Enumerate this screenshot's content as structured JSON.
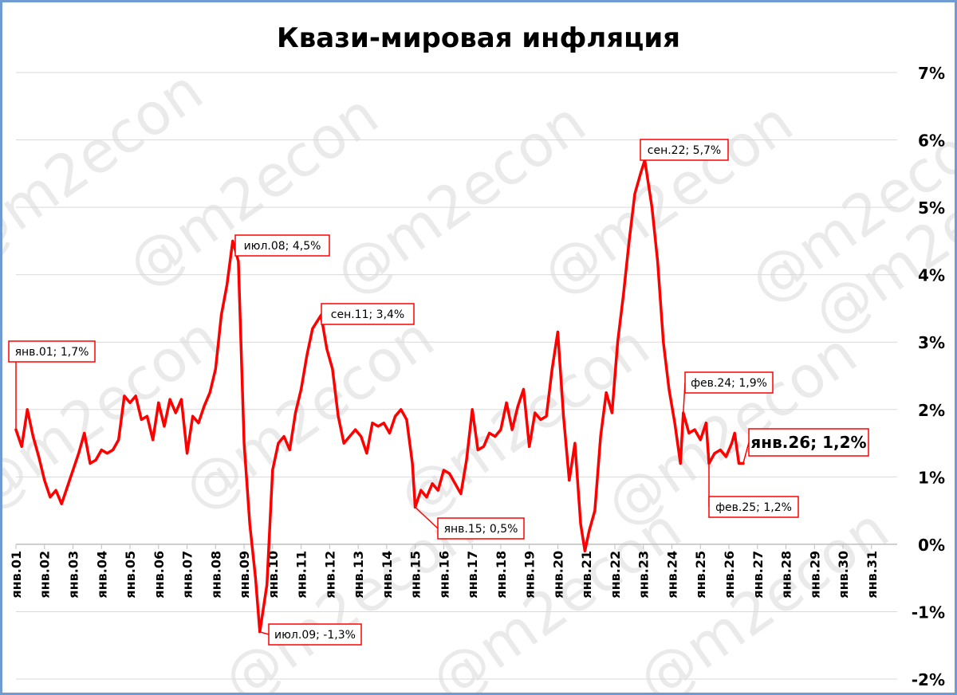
{
  "watermark": "@m2econ",
  "chart_data": {
    "type": "line",
    "title": "Квази-мировая инфляция",
    "xlabel": "",
    "ylabel": "",
    "ylim": [
      -2,
      7
    ],
    "y_ticks": [
      "7%",
      "6%",
      "5%",
      "4%",
      "3%",
      "2%",
      "1%",
      "0%",
      "-1%",
      "-2%"
    ],
    "y_tick_values": [
      7,
      6,
      5,
      4,
      3,
      2,
      1,
      0,
      -1,
      -2
    ],
    "x_ticks": [
      "янв.01",
      "янв.02",
      "янв.03",
      "янв.04",
      "янв.05",
      "янв.06",
      "янв.07",
      "янв.08",
      "янв.09",
      "янв.10",
      "янв.11",
      "янв.12",
      "янв.13",
      "янв.14",
      "янв.15",
      "янв.16",
      "янв.17",
      "янв.18",
      "янв.19",
      "янв.20",
      "янв.21",
      "янв.22",
      "янв.23",
      "янв.24",
      "янв.25",
      "янв.26",
      "янв.27",
      "янв.28",
      "янв.29",
      "янв.30",
      "янв.31"
    ],
    "x_start_year": 2001,
    "x_end_year": 2031,
    "grid": true,
    "series_color": "#ff0000",
    "series": [
      {
        "name": "",
        "points": [
          [
            2001.0,
            1.7
          ],
          [
            2001.2,
            1.45
          ],
          [
            2001.4,
            2.0
          ],
          [
            2001.6,
            1.6
          ],
          [
            2001.8,
            1.3
          ],
          [
            2002.0,
            0.95
          ],
          [
            2002.2,
            0.7
          ],
          [
            2002.4,
            0.8
          ],
          [
            2002.6,
            0.6
          ],
          [
            2002.8,
            0.85
          ],
          [
            2003.0,
            1.1
          ],
          [
            2003.2,
            1.35
          ],
          [
            2003.4,
            1.65
          ],
          [
            2003.6,
            1.2
          ],
          [
            2003.8,
            1.25
          ],
          [
            2004.0,
            1.4
          ],
          [
            2004.2,
            1.35
          ],
          [
            2004.4,
            1.4
          ],
          [
            2004.6,
            1.55
          ],
          [
            2004.8,
            2.2
          ],
          [
            2005.0,
            2.1
          ],
          [
            2005.2,
            2.2
          ],
          [
            2005.4,
            1.85
          ],
          [
            2005.6,
            1.9
          ],
          [
            2005.8,
            1.55
          ],
          [
            2006.0,
            2.1
          ],
          [
            2006.2,
            1.75
          ],
          [
            2006.4,
            2.15
          ],
          [
            2006.6,
            1.95
          ],
          [
            2006.8,
            2.15
          ],
          [
            2007.0,
            1.35
          ],
          [
            2007.2,
            1.9
          ],
          [
            2007.4,
            1.8
          ],
          [
            2007.6,
            2.05
          ],
          [
            2007.8,
            2.25
          ],
          [
            2008.0,
            2.6
          ],
          [
            2008.2,
            3.4
          ],
          [
            2008.4,
            3.85
          ],
          [
            2008.6,
            4.5
          ],
          [
            2008.8,
            4.2
          ],
          [
            2009.0,
            1.5
          ],
          [
            2009.2,
            0.3
          ],
          [
            2009.4,
            -0.5
          ],
          [
            2009.55,
            -1.3
          ],
          [
            2009.8,
            -0.6
          ],
          [
            2010.0,
            1.1
          ],
          [
            2010.2,
            1.5
          ],
          [
            2010.4,
            1.6
          ],
          [
            2010.6,
            1.4
          ],
          [
            2010.8,
            1.95
          ],
          [
            2011.0,
            2.3
          ],
          [
            2011.2,
            2.8
          ],
          [
            2011.4,
            3.2
          ],
          [
            2011.7,
            3.4
          ],
          [
            2011.9,
            2.9
          ],
          [
            2012.1,
            2.6
          ],
          [
            2012.3,
            1.9
          ],
          [
            2012.5,
            1.5
          ],
          [
            2012.7,
            1.6
          ],
          [
            2012.9,
            1.7
          ],
          [
            2013.1,
            1.6
          ],
          [
            2013.3,
            1.35
          ],
          [
            2013.5,
            1.8
          ],
          [
            2013.7,
            1.75
          ],
          [
            2013.9,
            1.8
          ],
          [
            2014.1,
            1.65
          ],
          [
            2014.3,
            1.9
          ],
          [
            2014.5,
            2.0
          ],
          [
            2014.7,
            1.85
          ],
          [
            2014.9,
            1.2
          ],
          [
            2015.0,
            0.55
          ],
          [
            2015.2,
            0.8
          ],
          [
            2015.4,
            0.7
          ],
          [
            2015.6,
            0.9
          ],
          [
            2015.8,
            0.8
          ],
          [
            2016.0,
            1.1
          ],
          [
            2016.2,
            1.05
          ],
          [
            2016.4,
            0.9
          ],
          [
            2016.6,
            0.75
          ],
          [
            2016.8,
            1.25
          ],
          [
            2017.0,
            2.0
          ],
          [
            2017.2,
            1.4
          ],
          [
            2017.4,
            1.45
          ],
          [
            2017.6,
            1.65
          ],
          [
            2017.8,
            1.6
          ],
          [
            2018.0,
            1.7
          ],
          [
            2018.2,
            2.1
          ],
          [
            2018.4,
            1.7
          ],
          [
            2018.6,
            2.05
          ],
          [
            2018.8,
            2.3
          ],
          [
            2019.0,
            1.45
          ],
          [
            2019.2,
            1.95
          ],
          [
            2019.4,
            1.85
          ],
          [
            2019.6,
            1.9
          ],
          [
            2019.8,
            2.6
          ],
          [
            2020.0,
            3.15
          ],
          [
            2020.2,
            1.9
          ],
          [
            2020.4,
            0.95
          ],
          [
            2020.6,
            1.5
          ],
          [
            2020.8,
            0.3
          ],
          [
            2020.95,
            -0.1
          ],
          [
            2021.1,
            0.2
          ],
          [
            2021.3,
            0.5
          ],
          [
            2021.5,
            1.6
          ],
          [
            2021.7,
            2.25
          ],
          [
            2021.9,
            1.95
          ],
          [
            2022.1,
            3.0
          ],
          [
            2022.3,
            3.7
          ],
          [
            2022.5,
            4.5
          ],
          [
            2022.7,
            5.2
          ],
          [
            2022.9,
            5.5
          ],
          [
            2023.05,
            5.7
          ],
          [
            2023.3,
            5.0
          ],
          [
            2023.5,
            4.2
          ],
          [
            2023.7,
            3.0
          ],
          [
            2023.9,
            2.3
          ],
          [
            2024.1,
            1.8
          ],
          [
            2024.3,
            1.2
          ],
          [
            2024.4,
            1.95
          ],
          [
            2024.6,
            1.65
          ],
          [
            2024.8,
            1.7
          ],
          [
            2025.0,
            1.55
          ],
          [
            2025.2,
            1.8
          ],
          [
            2025.3,
            1.2
          ],
          [
            2025.5,
            1.35
          ],
          [
            2025.7,
            1.4
          ],
          [
            2025.9,
            1.3
          ],
          [
            2026.1,
            1.5
          ],
          [
            2026.2,
            1.65
          ],
          [
            2026.35,
            1.2
          ],
          [
            2026.5,
            1.2
          ]
        ]
      }
    ],
    "annotations": [
      {
        "label": "янв.01; 1,7%",
        "x": 2001.0,
        "y": 1.7
      },
      {
        "label": "июл.08; 4,5%",
        "x": 2008.6,
        "y": 4.5
      },
      {
        "label": "июл.09; -1,3%",
        "x": 2009.55,
        "y": -1.3
      },
      {
        "label": "сен.11; 3,4%",
        "x": 2011.7,
        "y": 3.4
      },
      {
        "label": "янв.15; 0,5%",
        "x": 2015.0,
        "y": 0.55
      },
      {
        "label": "сен.22; 5,7%",
        "x": 2023.05,
        "y": 5.7
      },
      {
        "label": "фев.24; 1,9%",
        "x": 2024.4,
        "y": 1.95
      },
      {
        "label": "фев.25; 1,2%",
        "x": 2025.3,
        "y": 1.2
      },
      {
        "label": "янв.26; 1,2%",
        "x": 2026.5,
        "y": 1.2
      }
    ]
  }
}
